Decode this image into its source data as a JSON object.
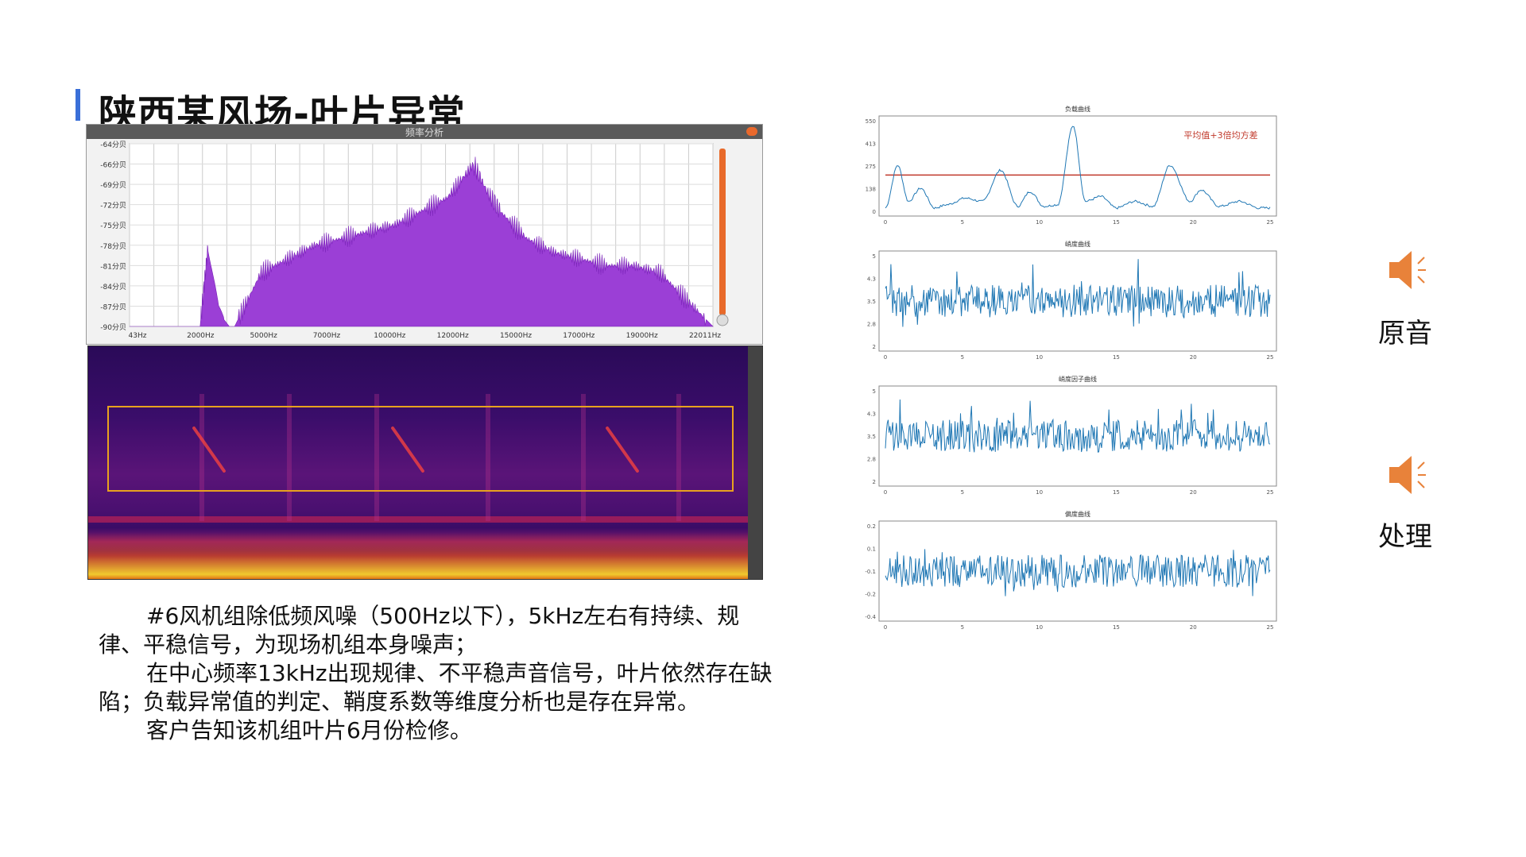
{
  "title": "陕西某风场-叶片异常",
  "frequency_window": {
    "title": "频率分析",
    "y_ticks": [
      "-64分贝",
      "-66分贝",
      "-69分贝",
      "-72分贝",
      "-75分贝",
      "-78分贝",
      "-81分贝",
      "-84分贝",
      "-87分贝",
      "-90分贝"
    ],
    "x_ticks": [
      "43Hz",
      "2000Hz",
      "5000Hz",
      "7000Hz",
      "10000Hz",
      "12000Hz",
      "15000Hz",
      "17000Hz",
      "19000Hz",
      "22011Hz"
    ]
  },
  "spectrogram": {
    "highlight_color": "#e8a21e"
  },
  "description": {
    "line1": "#6风机组除低频风噪（500Hz以下），5kHz左右有持续、规律、平稳信号，为现场机组本身噪声；",
    "line2": "在中心频率13kHz出现规律、不平稳声音信号，叶片依然存在缺陷；负载异常值的判定、鞘度系数等维度分析也是存在异常。",
    "line3": "客户告知该机组叶片6月份检修。"
  },
  "audio": {
    "original_label": "原音",
    "processed_label": "处理",
    "original_icon": "speaker-icon",
    "processed_icon": "speaker-icon",
    "icon_color": "#e8823a"
  },
  "chart_data": [
    {
      "type": "area",
      "title": "频率分析",
      "x": [
        43,
        1000,
        2000,
        2700,
        3000,
        3400,
        3800,
        4000,
        5000,
        6000,
        7000,
        8000,
        9000,
        10000,
        11000,
        12000,
        13000,
        13500,
        14000,
        15000,
        16000,
        17000,
        18000,
        19000,
        20000,
        21000,
        22011
      ],
      "values": [
        -90,
        -90,
        -90,
        -90,
        -78,
        -88,
        -90,
        -90,
        -82,
        -80,
        -78,
        -77,
        -76,
        -75,
        -73,
        -71,
        -66,
        -70,
        -73,
        -77,
        -79,
        -80,
        -81,
        -81,
        -82,
        -86,
        -90
      ],
      "ylim": [
        -90,
        -63
      ],
      "color": "#9b3fd6"
    },
    {
      "type": "line",
      "title": "负载曲线",
      "annotation": "平均值+3倍均方差",
      "threshold": 220,
      "x": [
        0,
        0.8,
        1.5,
        2.3,
        3.2,
        4.0,
        5.2,
        6.3,
        7.5,
        8.6,
        9.4,
        10.3,
        11.2,
        12.2,
        13.0,
        14.0,
        15.0,
        16.2,
        17.4,
        18.5,
        19.8,
        20.5,
        21.7,
        23.0,
        24.3
      ],
      "values": [
        20,
        280,
        60,
        140,
        20,
        40,
        80,
        60,
        250,
        30,
        120,
        30,
        40,
        520,
        60,
        90,
        20,
        60,
        30,
        280,
        60,
        130,
        30,
        60,
        20
      ],
      "ylim": [
        0,
        550
      ],
      "xlim": [
        0,
        25
      ],
      "color": "#1f77b4",
      "threshold_color": "#c0392b"
    },
    {
      "type": "line",
      "title": "峭度曲线",
      "ylim": [
        2,
        5
      ],
      "xlim": [
        0,
        25
      ],
      "color": "#1f77b4"
    },
    {
      "type": "line",
      "title": "峭度因子曲线",
      "ylim": [
        2.0,
        5.0
      ],
      "xlim": [
        0,
        25
      ],
      "color": "#1f77b4"
    },
    {
      "type": "line",
      "title": "偏度曲线",
      "ylim": [
        -0.4,
        0.2
      ],
      "xlim": [
        0,
        25
      ],
      "color": "#1f77b4"
    }
  ]
}
